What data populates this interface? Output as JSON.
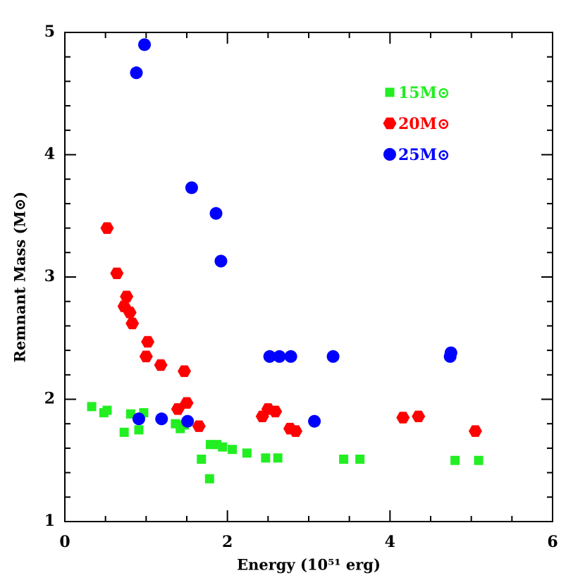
{
  "chart_data": {
    "type": "scatter",
    "x_label": "Energy (10⁵¹ erg)",
    "y_label": "Remnant Mass (M⊙)",
    "xlim": [
      0,
      6
    ],
    "ylim": [
      1,
      5
    ],
    "xticks": [
      0,
      2,
      4,
      6
    ],
    "yticks": [
      1,
      2,
      3,
      4,
      5
    ],
    "xminorticks": [
      0.5,
      1,
      1.5,
      2.5,
      3,
      3.5,
      4.5,
      5,
      5.5
    ],
    "yminorticks": [
      1.2,
      1.4,
      1.6,
      1.8,
      2.2,
      2.4,
      2.6,
      2.8,
      3.2,
      3.4,
      3.6,
      3.8,
      4.2,
      4.4,
      4.6,
      4.8
    ],
    "series": [
      {
        "name": "15M⊙",
        "color": "#22ee22",
        "marker": "square",
        "x": [
          0.33,
          0.48,
          0.52,
          0.73,
          0.81,
          0.97,
          0.91,
          1.36,
          1.42,
          1.47,
          1.68,
          1.79,
          1.78,
          1.87,
          1.94,
          2.06,
          2.24,
          2.47,
          2.62,
          3.43,
          3.63,
          4.8,
          5.09
        ],
        "values": [
          1.94,
          1.89,
          1.91,
          1.73,
          1.88,
          1.89,
          1.75,
          1.8,
          1.76,
          1.79,
          1.51,
          1.63,
          1.35,
          1.63,
          1.61,
          1.59,
          1.56,
          1.52,
          1.52,
          1.51,
          1.51,
          1.5,
          1.5
        ]
      },
      {
        "name": "20M⊙",
        "color": "#ff0000",
        "marker": "hexagon",
        "x": [
          0.52,
          0.64,
          0.76,
          0.73,
          0.8,
          0.83,
          1.02,
          1.0,
          1.18,
          1.47,
          1.5,
          1.39,
          1.65,
          2.43,
          2.5,
          2.59,
          2.77,
          2.84,
          4.16,
          4.35,
          5.05
        ],
        "values": [
          3.4,
          3.03,
          2.84,
          2.76,
          2.71,
          2.62,
          2.47,
          2.35,
          2.28,
          2.23,
          1.97,
          1.92,
          1.78,
          1.86,
          1.92,
          1.9,
          1.76,
          1.74,
          1.85,
          1.86,
          1.74
        ]
      },
      {
        "name": "25M⊙",
        "color": "#0000ff",
        "marker": "circle",
        "x": [
          0.98,
          0.88,
          1.56,
          1.86,
          1.92,
          0.91,
          1.19,
          1.51,
          2.52,
          2.64,
          2.78,
          3.07,
          3.3,
          4.74,
          4.75
        ],
        "values": [
          4.9,
          4.67,
          3.73,
          3.52,
          3.13,
          1.84,
          1.84,
          1.82,
          2.35,
          2.35,
          2.35,
          1.82,
          2.35,
          2.35,
          2.38
        ]
      }
    ]
  }
}
